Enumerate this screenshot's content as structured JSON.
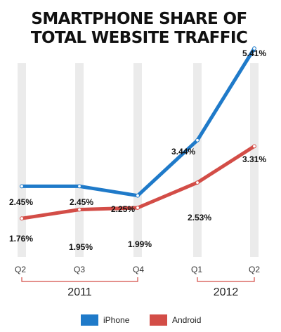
{
  "chart_data": {
    "type": "line",
    "title_lines": [
      "SMARTPHONE SHARE OF",
      "TOTAL WEBSITE TRAFFIC"
    ],
    "categories": [
      "Q2",
      "Q3",
      "Q4",
      "Q1",
      "Q2"
    ],
    "year_groups": [
      {
        "label": "2011",
        "from": 0,
        "to": 2
      },
      {
        "label": "2012",
        "from": 3,
        "to": 4
      }
    ],
    "series": [
      {
        "name": "iPhone",
        "color": "#1f7ac9",
        "values": [
          2.45,
          2.45,
          2.25,
          3.44,
          5.41
        ],
        "labels": [
          "2.45%",
          "2.45%",
          "2.25%",
          "3.44%",
          "5.41%"
        ]
      },
      {
        "name": "Android",
        "color": "#d34d47",
        "values": [
          1.76,
          1.95,
          1.99,
          2.53,
          3.31
        ],
        "labels": [
          "1.76%",
          "1.95%",
          "1.99%",
          "2.53%",
          "3.31%"
        ]
      }
    ],
    "grid": false,
    "legend_position": "bottom-center",
    "colors": {
      "column_band": "#ebebeb",
      "bracket": "#d34d47",
      "marker_fill": "#ffffff"
    }
  }
}
